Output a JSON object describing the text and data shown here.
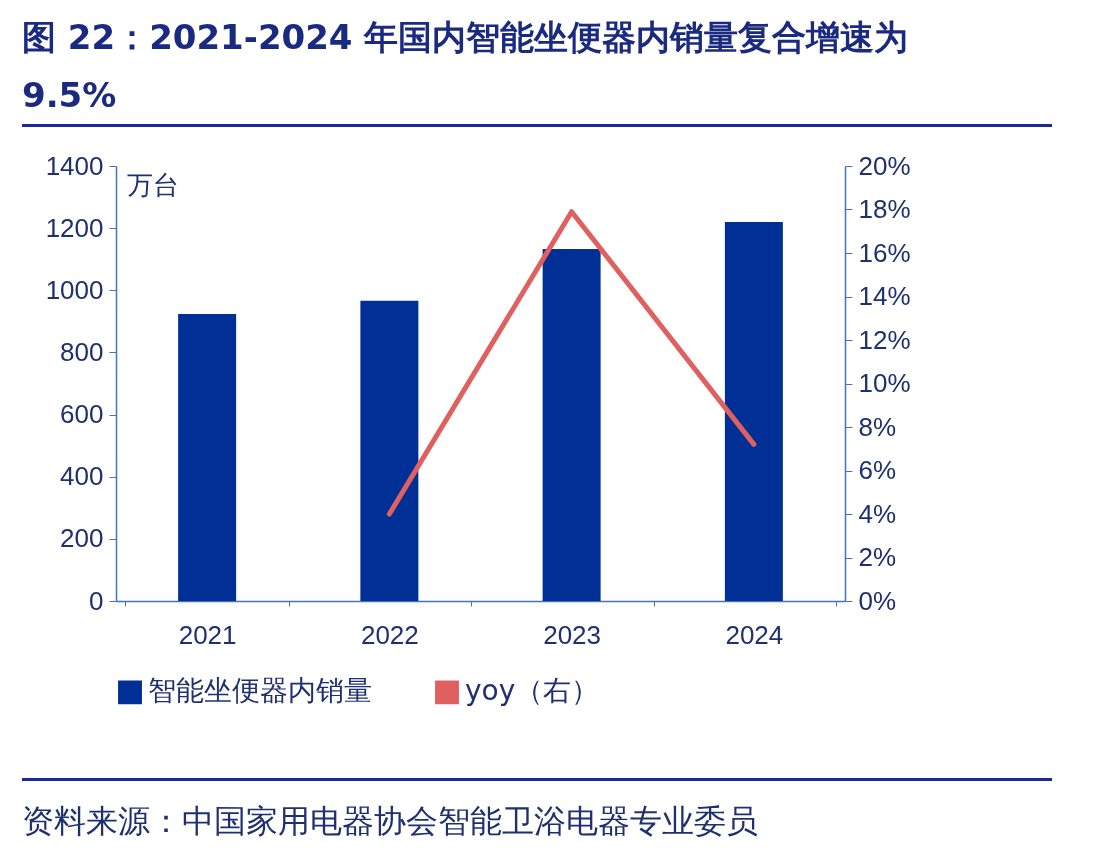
{
  "chart_data": {
    "type": "bar",
    "title": "图 22：2021-2024 年国内智能坐便器内销量复合增速为 9.5%",
    "ylabel": "万台",
    "categories": [
      "2021",
      "2022",
      "2023",
      "2024"
    ],
    "series": [
      {
        "name": "智能坐便器内销量",
        "color": "#002f96",
        "values": [
          924,
          966,
          1133,
          1220
        ]
      },
      {
        "name": "yoy（右）",
        "type": "line",
        "axis": "y2",
        "color": "#e06060",
        "values": [
          null,
          4.0,
          17.9,
          7.2
        ]
      }
    ],
    "ylim": [
      0,
      1400
    ],
    "yticks": [
      0,
      200,
      400,
      600,
      800,
      1000,
      1200,
      1400
    ],
    "y2lim": [
      0,
      20
    ],
    "y2ticks": [
      {
        "value": 0,
        "label": "0%"
      },
      {
        "value": 2,
        "label": "2%"
      },
      {
        "value": 4,
        "label": "4%"
      },
      {
        "value": 6,
        "label": "6%"
      },
      {
        "value": 8,
        "label": "8%"
      },
      {
        "value": 10,
        "label": "10%"
      },
      {
        "value": 12,
        "label": "12%"
      },
      {
        "value": 14,
        "label": "14%"
      },
      {
        "value": 16,
        "label": "16%"
      },
      {
        "value": 18,
        "label": "18%"
      },
      {
        "value": 20,
        "label": "20%"
      }
    ],
    "grid": false,
    "legend": "bottom",
    "line_style": "solid",
    "annotations": [
      "资料来源：中国家用电器协会智能卫浴电器专业委员"
    ]
  }
}
